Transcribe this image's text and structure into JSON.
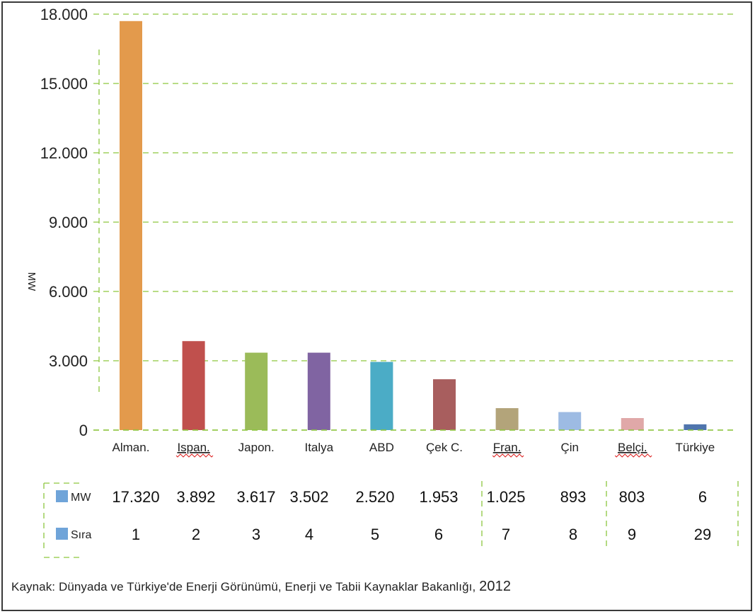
{
  "chart_data": {
    "type": "bar",
    "ylabel": "MW",
    "ylim": [
      0,
      18000
    ],
    "yticks": [
      "0",
      "3.000",
      "6.000",
      "9.000",
      "12.000",
      "15.000",
      "18.000"
    ],
    "ytick_values": [
      0,
      3000,
      6000,
      9000,
      12000,
      15000,
      18000
    ],
    "grid": true,
    "categories": [
      "Alman.",
      "Ispan.",
      "Japon.",
      "Italya",
      "ABD",
      "Çek C.",
      "Fran.",
      "Çin",
      "Belçi.",
      "Türkiye"
    ],
    "underlined_categories": [
      "Ispan.",
      "Fran.",
      "Belçi."
    ],
    "values": [
      17320,
      3892,
      3617,
      3502,
      2520,
      1953,
      1025,
      893,
      803,
      6
    ],
    "bar_values_shown": [
      17700,
      3850,
      3350,
      3350,
      2950,
      2200,
      950,
      780,
      520,
      250
    ],
    "colors": [
      "#E39A4C",
      "#C0504D",
      "#9BBB59",
      "#8064A2",
      "#4BACC6",
      "#A85E5E",
      "#B3A47A",
      "#9DBBE3",
      "#E0A8A8",
      "#4F75AD"
    ]
  },
  "table": {
    "rows": [
      {
        "label": "MW",
        "values": [
          "17.320",
          "3.892",
          "3.617",
          "3.502",
          "2.520",
          "1.953",
          "1.025",
          "893",
          "803",
          "6"
        ]
      },
      {
        "label": "Sıra",
        "values": [
          "1",
          "2",
          "3",
          "4",
          "5",
          "6",
          "7",
          "8",
          "9",
          "29"
        ]
      }
    ],
    "legend_color": "#6FA4D9"
  },
  "source": {
    "text": "Kaynak: Dünyada ve Türkiye'de Enerji Görünümü, Enerji ve Tabii Kaynaklar Bakanlığı,",
    "year": "2012"
  },
  "colors": {
    "grid": "#8DC63F",
    "axis": "#555555"
  }
}
